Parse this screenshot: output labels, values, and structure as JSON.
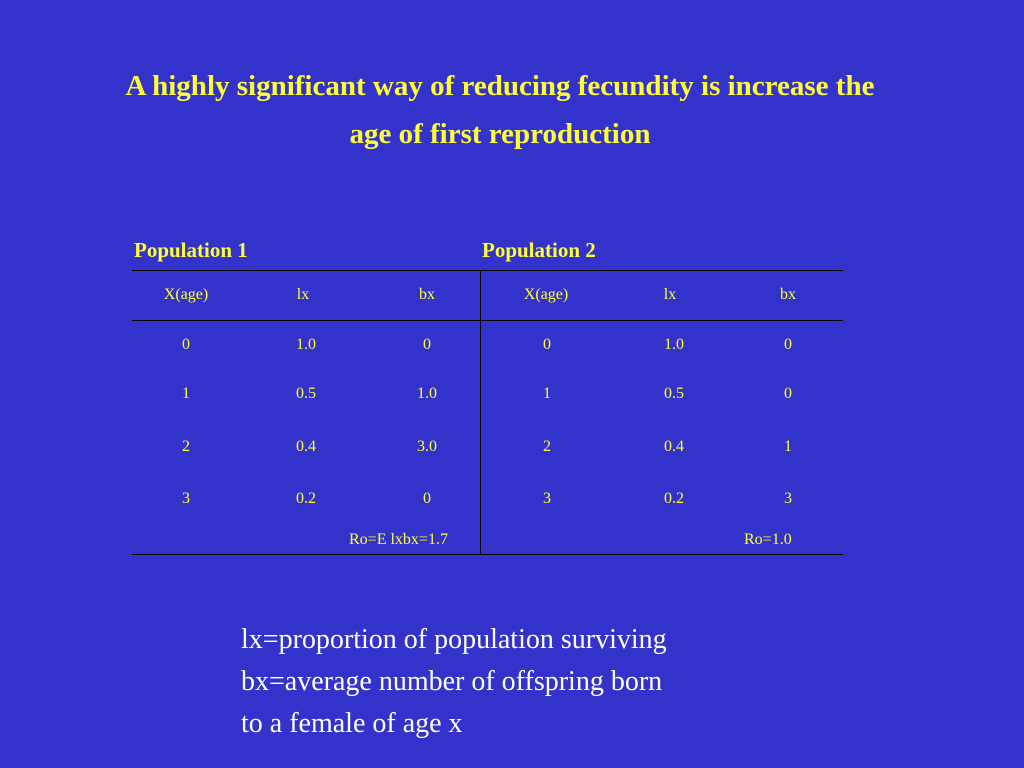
{
  "title_line1": "A highly significant way of reducing fecundity is increase the",
  "title_line2": "age of first reproduction",
  "table": {
    "population1_label": "Population 1",
    "population2_label": "Population 2",
    "headers": [
      "X(age)",
      "lx",
      "bx",
      "X(age)",
      "lx",
      "bx"
    ],
    "rows": [
      [
        "0",
        "1.0",
        "0",
        "0",
        "1.0",
        "0"
      ],
      [
        "1",
        "0.5",
        "1.0",
        "1",
        "0.5",
        "0"
      ],
      [
        "2",
        "0.4",
        "3.0",
        "2",
        "0.4",
        "1"
      ],
      [
        "3",
        "0.2",
        "0",
        "3",
        "0.2",
        "3"
      ]
    ],
    "population1_summary": "Ro=E lxbx=1.7",
    "population2_summary": "Ro=1.0"
  },
  "legend": {
    "line1": "lx=proportion of population surviving",
    "line2": "bx=average number of offspring born",
    "line3": "to a female of age x"
  }
}
